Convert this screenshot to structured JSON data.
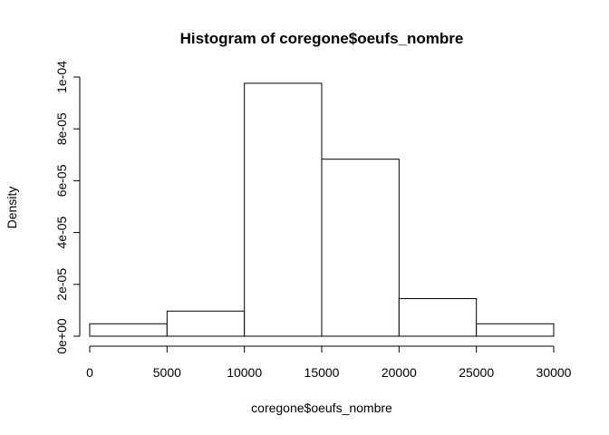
{
  "chart_data": {
    "type": "bar",
    "title": "Histogram of coregone$oeufs_nombre",
    "xlabel": "coregone$oeufs_nombre",
    "ylabel": "Density",
    "bins": [
      {
        "from": 0,
        "to": 5000,
        "density": 4.8e-06
      },
      {
        "from": 5000,
        "to": 10000,
        "density": 9.7e-06
      },
      {
        "from": 10000,
        "to": 15000,
        "density": 9.76e-05
      },
      {
        "from": 15000,
        "to": 20000,
        "density": 6.83e-05
      },
      {
        "from": 20000,
        "to": 25000,
        "density": 1.45e-05
      },
      {
        "from": 25000,
        "to": 30000,
        "density": 4.8e-06
      }
    ],
    "xlim": [
      0,
      30000
    ],
    "ylim": [
      0,
      0.0001
    ],
    "x_ticks": [
      {
        "value": 0,
        "label": "0"
      },
      {
        "value": 5000,
        "label": "5000"
      },
      {
        "value": 10000,
        "label": "10000"
      },
      {
        "value": 15000,
        "label": "15000"
      },
      {
        "value": 20000,
        "label": "20000"
      },
      {
        "value": 25000,
        "label": "25000"
      },
      {
        "value": 30000,
        "label": "30000"
      }
    ],
    "y_ticks": [
      {
        "value": 0,
        "label": "0e+00"
      },
      {
        "value": 2e-05,
        "label": "2e-05"
      },
      {
        "value": 4e-05,
        "label": "4e-05"
      },
      {
        "value": 6e-05,
        "label": "6e-05"
      },
      {
        "value": 8e-05,
        "label": "8e-05"
      },
      {
        "value": 0.0001,
        "label": "1e-04"
      }
    ],
    "grid": false,
    "legend": "none",
    "bar_fill": "#ffffff",
    "bar_stroke": "#000000"
  }
}
